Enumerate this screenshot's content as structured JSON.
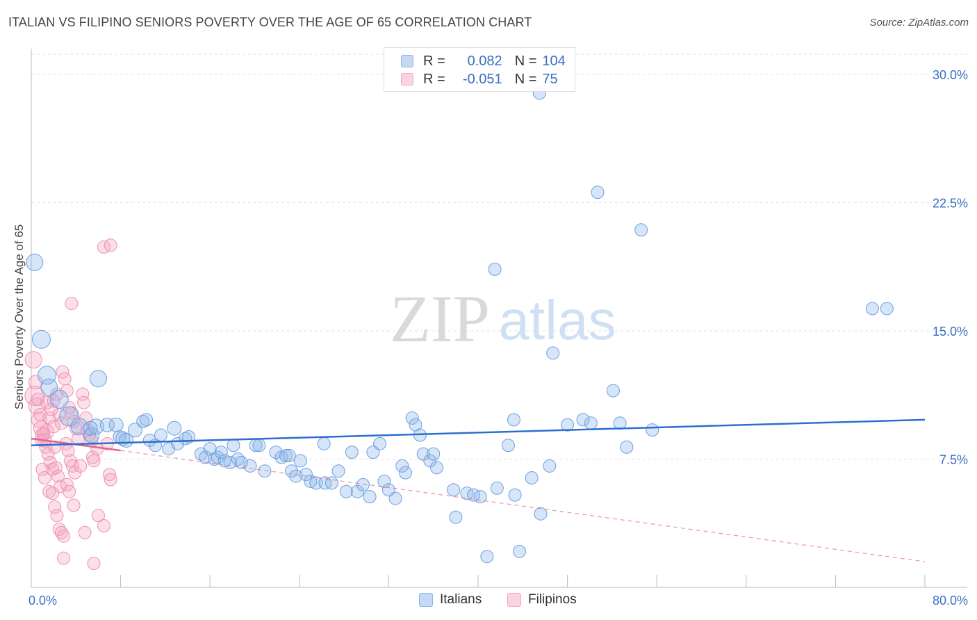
{
  "title": "ITALIAN VS FILIPINO SENIORS POVERTY OVER THE AGE OF 65 CORRELATION CHART",
  "source": "Source: ZipAtlas.com",
  "watermark": {
    "zip": "ZIP",
    "atlas": "atlas"
  },
  "legend": {
    "rows": [
      {
        "r_label": "R =",
        "r_value": "0.082",
        "n_label": "N =",
        "n_value": "104",
        "color": "#8ab4e8"
      },
      {
        "r_label": "R =",
        "r_value": "-0.051",
        "n_label": "N =",
        "n_value": "75",
        "color": "#f4a6c0"
      }
    ]
  },
  "bottom_legend": [
    {
      "label": "Italians",
      "color": "#8ab4e8"
    },
    {
      "label": "Filipinos",
      "color": "#f4a6c0"
    }
  ],
  "chart_data": {
    "type": "scatter",
    "ylabel": "Seniors Poverty Over the Age of 65",
    "xlim": [
      0,
      80
    ],
    "ylim": [
      0,
      31.5
    ],
    "x_tick_labels": [
      {
        "value": 0,
        "label": "0.0%"
      },
      {
        "value": 80,
        "label": "80.0%"
      }
    ],
    "y_ticks": [
      {
        "value": 7.5,
        "label": "7.5%"
      },
      {
        "value": 15.0,
        "label": "15.0%"
      },
      {
        "value": 22.5,
        "label": "22.5%"
      },
      {
        "value": 30.0,
        "label": "30.0%"
      }
    ],
    "x_minor_ticks": [
      8,
      16,
      24,
      32,
      40,
      48,
      56,
      64,
      72,
      80
    ],
    "grid": true,
    "colors": {
      "italians": "#6e9fe0",
      "filipinos": "#f08fb2",
      "italians_line": "#2b6fcf",
      "filipinos_line": "#e0648f",
      "tick_label": "#3a6fc4"
    },
    "series": [
      {
        "name": "Italians",
        "trend": {
          "x0": 0,
          "y0": 8.3,
          "x1": 80,
          "y1": 9.8
        },
        "points": [
          [
            0.3,
            19.0,
            12
          ],
          [
            0.9,
            14.5,
            13
          ],
          [
            1.4,
            12.4,
            13
          ],
          [
            1.6,
            11.7,
            12
          ],
          [
            2.5,
            11.0,
            13
          ],
          [
            3.4,
            10.0,
            14
          ],
          [
            4.3,
            9.4,
            12
          ],
          [
            5.4,
            8.9,
            11
          ],
          [
            5.8,
            9.4,
            11
          ],
          [
            5.3,
            9.3,
            10
          ],
          [
            6.0,
            12.2,
            12
          ],
          [
            6.8,
            9.5,
            10
          ],
          [
            7.6,
            9.5,
            10
          ],
          [
            7.9,
            8.8,
            9
          ],
          [
            8.2,
            8.7,
            10
          ],
          [
            8.5,
            8.6,
            10
          ],
          [
            9.3,
            9.2,
            10
          ],
          [
            10.0,
            9.7,
            9
          ],
          [
            10.3,
            9.8,
            9
          ],
          [
            10.6,
            8.6,
            9
          ],
          [
            11.1,
            8.3,
            9
          ],
          [
            11.6,
            8.9,
            9
          ],
          [
            12.3,
            8.1,
            9
          ],
          [
            12.8,
            9.3,
            10
          ],
          [
            13.1,
            8.4,
            9
          ],
          [
            13.8,
            8.7,
            9
          ],
          [
            14.1,
            8.8,
            9
          ],
          [
            15.2,
            7.8,
            9
          ],
          [
            15.6,
            7.6,
            9
          ],
          [
            16.0,
            8.1,
            9
          ],
          [
            16.4,
            7.5,
            9
          ],
          [
            16.7,
            7.6,
            9
          ],
          [
            17.0,
            7.9,
            9
          ],
          [
            17.3,
            7.4,
            9
          ],
          [
            17.8,
            7.3,
            9
          ],
          [
            18.1,
            8.3,
            9
          ],
          [
            18.5,
            7.5,
            9
          ],
          [
            18.8,
            7.3,
            9
          ],
          [
            19.6,
            7.1,
            9
          ],
          [
            20.1,
            8.3,
            9
          ],
          [
            20.4,
            8.3,
            9
          ],
          [
            20.9,
            6.8,
            9
          ],
          [
            21.9,
            7.9,
            9
          ],
          [
            22.4,
            7.6,
            9
          ],
          [
            22.8,
            7.7,
            9
          ],
          [
            23.1,
            7.7,
            9
          ],
          [
            23.3,
            6.8,
            9
          ],
          [
            23.7,
            6.5,
            9
          ],
          [
            24.1,
            7.4,
            9
          ],
          [
            24.6,
            6.6,
            9
          ],
          [
            25.0,
            6.2,
            9
          ],
          [
            25.5,
            6.1,
            9
          ],
          [
            26.3,
            6.1,
            9
          ],
          [
            26.2,
            8.4,
            9
          ],
          [
            26.9,
            6.1,
            9
          ],
          [
            27.5,
            6.8,
            9
          ],
          [
            28.2,
            5.6,
            9
          ],
          [
            28.7,
            7.9,
            9
          ],
          [
            29.2,
            5.6,
            9
          ],
          [
            29.7,
            6.0,
            9
          ],
          [
            30.3,
            5.3,
            9
          ],
          [
            30.6,
            7.9,
            9
          ],
          [
            31.2,
            8.4,
            9
          ],
          [
            31.6,
            6.2,
            9
          ],
          [
            32.0,
            5.7,
            9
          ],
          [
            32.6,
            5.2,
            9
          ],
          [
            33.2,
            7.1,
            9
          ],
          [
            33.5,
            6.7,
            9
          ],
          [
            34.1,
            9.9,
            9
          ],
          [
            34.4,
            9.5,
            9
          ],
          [
            34.8,
            8.9,
            9
          ],
          [
            35.1,
            7.8,
            9
          ],
          [
            35.7,
            7.4,
            9
          ],
          [
            36.0,
            7.8,
            9
          ],
          [
            36.3,
            7.0,
            9
          ],
          [
            37.8,
            5.7,
            9
          ],
          [
            38.0,
            4.1,
            9
          ],
          [
            39.0,
            5.5,
            9
          ],
          [
            39.6,
            5.4,
            9
          ],
          [
            40.2,
            5.3,
            9
          ],
          [
            40.8,
            1.8,
            9
          ],
          [
            41.5,
            18.6,
            9
          ],
          [
            41.7,
            5.8,
            9
          ],
          [
            42.7,
            8.3,
            9
          ],
          [
            43.2,
            9.8,
            9
          ],
          [
            43.3,
            5.4,
            9
          ],
          [
            43.7,
            2.1,
            9
          ],
          [
            44.8,
            6.4,
            9
          ],
          [
            45.6,
            4.3,
            9
          ],
          [
            46.4,
            7.1,
            9
          ],
          [
            46.7,
            13.7,
            9
          ],
          [
            48.0,
            9.5,
            9
          ],
          [
            49.4,
            9.8,
            9
          ],
          [
            50.1,
            9.6,
            9
          ],
          [
            50.7,
            23.1,
            9
          ],
          [
            52.1,
            11.5,
            9
          ],
          [
            52.7,
            9.6,
            9
          ],
          [
            53.3,
            8.2,
            9
          ],
          [
            54.6,
            20.9,
            9
          ],
          [
            55.6,
            9.2,
            9
          ],
          [
            75.3,
            16.3,
            9
          ],
          [
            76.6,
            16.3,
            9
          ],
          [
            45.5,
            28.9,
            9
          ]
        ]
      },
      {
        "name": "Filipinos",
        "trend_solid": {
          "x0": 0,
          "y0": 8.7,
          "x1": 8,
          "y1": 8.0
        },
        "trend_dashed": {
          "x0": 8,
          "y0": 8.0,
          "x1": 80,
          "y1": 1.5
        },
        "points": [
          [
            0.2,
            13.3,
            12
          ],
          [
            0.3,
            11.2,
            14
          ],
          [
            0.5,
            10.6,
            12
          ],
          [
            0.7,
            9.8,
            11
          ],
          [
            0.9,
            9.3,
            11
          ],
          [
            1.0,
            8.9,
            10
          ],
          [
            1.2,
            8.6,
            10
          ],
          [
            1.4,
            9.1,
            10
          ],
          [
            1.6,
            9.9,
            9
          ],
          [
            1.8,
            10.4,
            9
          ],
          [
            2.0,
            9.4,
            9
          ],
          [
            2.1,
            8.2,
            9
          ],
          [
            2.3,
            11.3,
            9
          ],
          [
            2.5,
            10.1,
            9
          ],
          [
            2.7,
            9.6,
            9
          ],
          [
            0.4,
            12.0,
            10
          ],
          [
            0.6,
            11.0,
            9
          ],
          [
            0.8,
            10.1,
            9
          ],
          [
            1.1,
            9.0,
            9
          ],
          [
            1.3,
            8.2,
            9
          ],
          [
            1.5,
            7.8,
            9
          ],
          [
            1.7,
            7.3,
            9
          ],
          [
            1.9,
            6.9,
            9
          ],
          [
            2.2,
            7.0,
            9
          ],
          [
            2.4,
            6.5,
            9
          ],
          [
            2.6,
            5.9,
            9
          ],
          [
            1.0,
            6.9,
            9
          ],
          [
            1.2,
            6.4,
            9
          ],
          [
            1.6,
            5.6,
            9
          ],
          [
            1.9,
            5.5,
            9
          ],
          [
            2.1,
            4.7,
            9
          ],
          [
            2.3,
            4.2,
            9
          ],
          [
            2.5,
            3.4,
            9
          ],
          [
            2.7,
            3.2,
            9
          ],
          [
            2.9,
            3.0,
            9
          ],
          [
            2.9,
            1.7,
            9
          ],
          [
            3.0,
            12.2,
            9
          ],
          [
            3.2,
            11.5,
            9
          ],
          [
            3.4,
            10.5,
            9
          ],
          [
            3.6,
            10.2,
            9
          ],
          [
            3.8,
            9.7,
            9
          ],
          [
            4.0,
            9.3,
            9
          ],
          [
            4.2,
            8.7,
            9
          ],
          [
            3.1,
            8.4,
            9
          ],
          [
            3.3,
            8.0,
            9
          ],
          [
            3.5,
            7.4,
            9
          ],
          [
            3.7,
            7.1,
            9
          ],
          [
            3.9,
            6.7,
            9
          ],
          [
            3.2,
            6.0,
            9
          ],
          [
            3.4,
            5.6,
            9
          ],
          [
            3.8,
            4.8,
            9
          ],
          [
            4.6,
            11.3,
            9
          ],
          [
            4.7,
            10.8,
            9
          ],
          [
            4.9,
            9.9,
            9
          ],
          [
            5.0,
            9.2,
            9
          ],
          [
            5.2,
            8.9,
            9
          ],
          [
            5.4,
            8.6,
            9
          ],
          [
            5.5,
            7.6,
            9
          ],
          [
            5.6,
            7.4,
            9
          ],
          [
            3.6,
            16.6,
            9
          ],
          [
            6.5,
            19.9,
            9
          ],
          [
            7.1,
            20.0,
            9
          ],
          [
            6.0,
            4.2,
            9
          ],
          [
            6.5,
            3.6,
            9
          ],
          [
            7.0,
            6.6,
            9
          ],
          [
            7.1,
            6.3,
            9
          ],
          [
            4.8,
            3.2,
            9
          ],
          [
            5.6,
            1.4,
            9
          ],
          [
            2.8,
            12.6,
            9
          ],
          [
            0.9,
            8.6,
            9
          ],
          [
            1.4,
            10.8,
            9
          ],
          [
            2.0,
            10.9,
            9
          ],
          [
            4.4,
            7.1,
            9
          ],
          [
            5.9,
            8.1,
            9
          ],
          [
            6.8,
            8.4,
            9
          ]
        ]
      }
    ]
  }
}
